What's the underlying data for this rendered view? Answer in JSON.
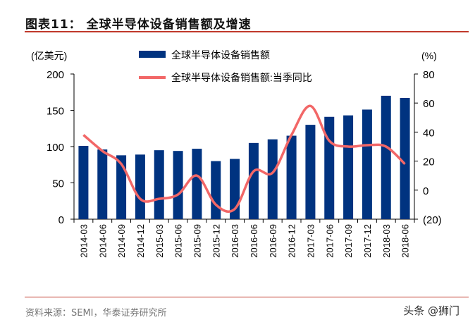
{
  "title": "图表11：   全球半导体设备销售额及增速",
  "source": "资料来源：SEMI，华泰证券研究所",
  "watermark": "头条 @狮门",
  "colors": {
    "bar": "#003380",
    "line": "#f26767",
    "rule": "#c0392b"
  },
  "chart_data": {
    "type": "bar+line",
    "categories": [
      "2014-03",
      "2014-06",
      "2014-09",
      "2014-12",
      "2015-03",
      "2015-06",
      "2015-09",
      "2015-12",
      "2016-03",
      "2016-06",
      "2016-09",
      "2016-12",
      "2017-03",
      "2017-06",
      "2017-09",
      "2017-12",
      "2018-03",
      "2018-06"
    ],
    "series": [
      {
        "name": "全球半导体设备销售额",
        "type": "bar",
        "axis": "left",
        "values": [
          101,
          96,
          88,
          89,
          95,
          94,
          97,
          80,
          83,
          105,
          110,
          115,
          130,
          141,
          143,
          151,
          170,
          167
        ]
      },
      {
        "name": "全球半导体设备销售额:当季同比",
        "type": "line",
        "axis": "right",
        "values": [
          38,
          27,
          18,
          -6,
          -6,
          -3,
          10,
          -10,
          -13,
          13,
          12,
          38,
          58,
          34,
          30,
          31,
          30,
          18
        ]
      }
    ],
    "left_axis": {
      "label": "(亿美元)",
      "range": [
        0,
        200
      ],
      "ticks": [
        "0",
        "50",
        "100",
        "150",
        "200"
      ]
    },
    "right_axis": {
      "label": "(%)",
      "range": [
        -20,
        80
      ],
      "ticks": [
        "(20)",
        "0",
        "20",
        "40",
        "60",
        "80"
      ]
    },
    "legend": "top-center",
    "grid": false
  }
}
